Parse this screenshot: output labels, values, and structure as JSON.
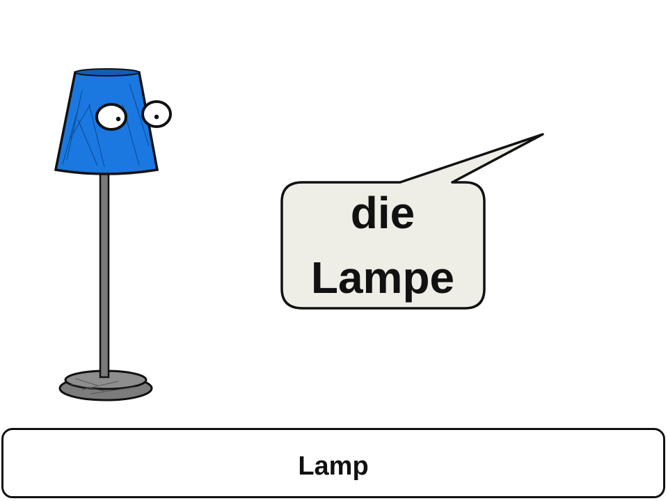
{
  "speech_bubble": {
    "line_1": "die",
    "line_2": "Lampe"
  },
  "caption": {
    "text": "Lamp"
  },
  "colors": {
    "lampshade": "#1a78e0",
    "lamp_pole": "#7a7a7a",
    "lamp_base": "#8a8a8a",
    "bubble_fill": "#eeede6",
    "outline": "#111111"
  },
  "icons": {
    "lamp": "lamp-character-icon",
    "eyes": "cartoon-eyes-icon"
  }
}
